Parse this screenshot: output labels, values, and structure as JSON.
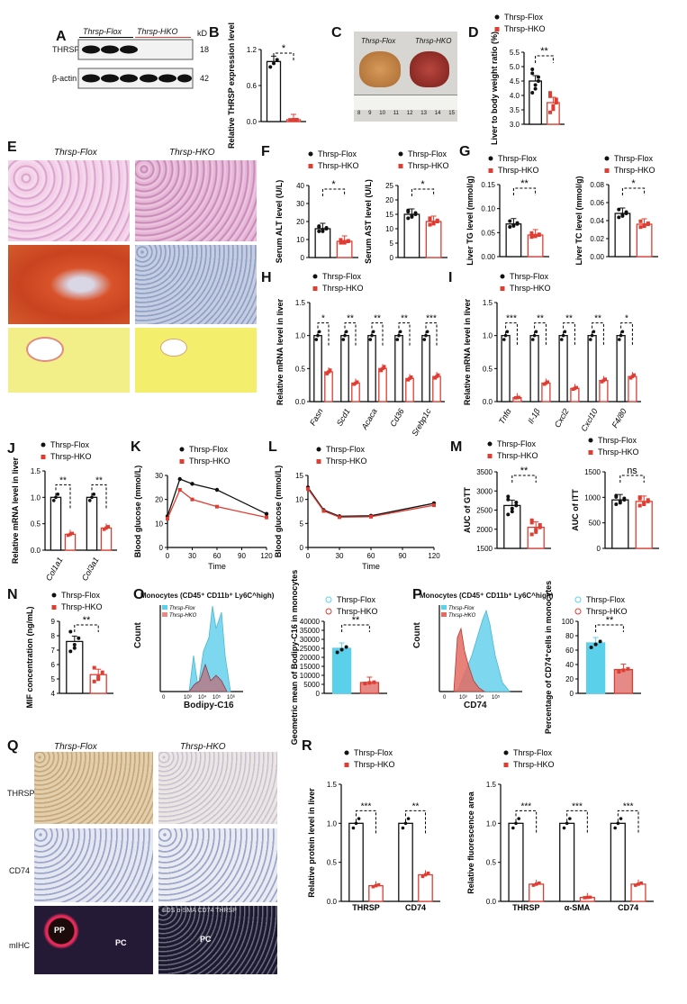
{
  "panels": [
    "A",
    "B",
    "C",
    "D",
    "E",
    "F",
    "G",
    "H",
    "I",
    "J",
    "K",
    "L",
    "M",
    "N",
    "O",
    "P",
    "Q",
    "R"
  ],
  "groups": {
    "flox_prefix": "Thrsp",
    "flox_suffix": "-Flox",
    "hko_prefix": "Thrsp",
    "hko_suffix": "-HKO"
  },
  "colors": {
    "flox": "#111111",
    "hko": "#e03c31",
    "hko_fill": "#e8827a",
    "cyan": "#5bd0ea",
    "pink": "#e58a86"
  },
  "panel_a": {
    "header_flox": "Thrsp-Flox",
    "header_hko": "Thrsp-HKO",
    "kd": "kD",
    "rows": [
      {
        "label": "THRSP",
        "kd": "18"
      },
      {
        "label": "β-actin",
        "kd": "42"
      }
    ]
  },
  "panel_c": {
    "left": "Thrsp-Flox",
    "right": "Thrsp-HKO",
    "ruler": [
      "8",
      "9",
      "10",
      "11",
      "12",
      "13",
      "14",
      "15"
    ]
  },
  "panel_e": {
    "left": "Thrsp-Flox",
    "right": "Thrsp-HKO"
  },
  "panel_o": {
    "title": "Monocytes (CD45⁺ CD11b⁺ Ly6C^high)",
    "xaxis": "Bodipy-C16",
    "yaxis": "Count",
    "ticks": [
      "0",
      "10³",
      "10⁴",
      "10⁵",
      "10⁶"
    ],
    "legend": [
      "Thrsp-Flox",
      "Thrsp-HKO"
    ]
  },
  "panel_p": {
    "title": "Monocytes (CD45⁺ CD11b⁺ Ly6C^high)",
    "xaxis": "CD74",
    "yaxis": "Count",
    "ticks": [
      "0",
      "10³",
      "10⁴",
      "10⁵"
    ],
    "legend": [
      "Thrsp-Flox",
      "Thrsp-HKO"
    ]
  },
  "panel_q": {
    "col_left": "Thrsp-Flox",
    "col_right": "Thrsp-HKO",
    "rows": [
      "THRSP",
      "CD74",
      "mIHC"
    ],
    "pp": "PP",
    "pc": "PC",
    "mihc_legend": "SDS α-SMA CD74 THRSP"
  },
  "chart_data": [
    {
      "id": "B",
      "type": "bar",
      "ylabel": "Relative THRSP expression level",
      "ylim": [
        0,
        1.2
      ],
      "yticks": [
        "0.0",
        "0.6",
        "1.2"
      ],
      "categories": [
        "Thrsp-Flox",
        "Thrsp-HKO"
      ],
      "values": [
        1.0,
        0.03
      ],
      "sig": [
        "*"
      ]
    },
    {
      "id": "D",
      "type": "bar",
      "ylabel": "Liver to body weight ratio (%)",
      "ylim": [
        3.0,
        5.5
      ],
      "yticks": [
        "3.0",
        "3.5",
        "4.0",
        "4.5",
        "5.0",
        "5.5"
      ],
      "categories": [
        "Thrsp-Flox",
        "Thrsp-HKO"
      ],
      "values": [
        4.5,
        3.75
      ],
      "sig": [
        "**"
      ]
    },
    {
      "id": "F1",
      "type": "bar",
      "ylabel": "Serum ALT level (U/L)",
      "ylim": [
        0,
        40
      ],
      "yticks": [
        "0",
        "10",
        "20",
        "30",
        "40"
      ],
      "categories": [
        "Thrsp-Flox",
        "Thrsp-HKO"
      ],
      "values": [
        16,
        9
      ],
      "sig": [
        "*"
      ]
    },
    {
      "id": "F2",
      "type": "bar",
      "ylabel": "Serum AST level (U/L)",
      "ylim": [
        0,
        25
      ],
      "yticks": [
        "0",
        "5",
        "10",
        "15",
        "20",
        "25"
      ],
      "categories": [
        "Thrsp-Flox",
        "Thrsp-HKO"
      ],
      "values": [
        15,
        12.5
      ],
      "sig": [
        "*"
      ]
    },
    {
      "id": "G1",
      "type": "bar",
      "ylabel": "Liver TG level (mmol/g)",
      "ylim": [
        0,
        0.15
      ],
      "yticks": [
        "0.00",
        "0.05",
        "0.10",
        "0.15"
      ],
      "categories": [
        "Thrsp-Flox",
        "Thrsp-HKO"
      ],
      "values": [
        0.068,
        0.045
      ],
      "sig": [
        "**"
      ]
    },
    {
      "id": "G2",
      "type": "bar",
      "ylabel": "Liver TC level (mmol/g)",
      "ylim": [
        0,
        0.08
      ],
      "yticks": [
        "0.00",
        "0.02",
        "0.04",
        "0.06",
        "0.08"
      ],
      "categories": [
        "Thrsp-Flox",
        "Thrsp-HKO"
      ],
      "values": [
        0.048,
        0.036
      ],
      "sig": [
        "*"
      ]
    },
    {
      "id": "H",
      "type": "bar",
      "ylabel": "Relative mRNA level in liver",
      "ylim": [
        0,
        1.5
      ],
      "yticks": [
        "0.0",
        "0.5",
        "1.0",
        "1.5"
      ],
      "categories": [
        "Fasn",
        "Scd1",
        "Acaca",
        "Cd36",
        "Srebp1c"
      ],
      "series": [
        {
          "name": "Thrsp-Flox",
          "values": [
            1.0,
            1.0,
            1.0,
            1.0,
            1.0
          ]
        },
        {
          "name": "Thrsp-HKO",
          "values": [
            0.45,
            0.28,
            0.5,
            0.35,
            0.38
          ]
        }
      ],
      "sig": [
        "*",
        "**",
        "**",
        "**",
        "***"
      ]
    },
    {
      "id": "I",
      "type": "bar",
      "ylabel": "Relative mRNA level in liver",
      "ylim": [
        0,
        1.5
      ],
      "yticks": [
        "0.0",
        "0.5",
        "1.0",
        "1.5"
      ],
      "categories": [
        "Tnfα",
        "Il-1β",
        "Cxcl2",
        "Cxcl10",
        "F4/80"
      ],
      "series": [
        {
          "name": "Thrsp-Flox",
          "values": [
            1.0,
            1.0,
            1.0,
            1.0,
            1.0
          ]
        },
        {
          "name": "Thrsp-HKO",
          "values": [
            0.06,
            0.28,
            0.2,
            0.32,
            0.38
          ]
        }
      ],
      "sig": [
        "***",
        "**",
        "**",
        "**",
        "*"
      ]
    },
    {
      "id": "J",
      "type": "bar",
      "ylabel": "Relative mRNA level in liver",
      "ylim": [
        0,
        1.5
      ],
      "yticks": [
        "0.0",
        "0.5",
        "1.0",
        "1.5"
      ],
      "categories": [
        "Col1a1",
        "Col3a1"
      ],
      "series": [
        {
          "name": "Thrsp-Flox",
          "values": [
            1.0,
            1.0
          ]
        },
        {
          "name": "Thrsp-HKO",
          "values": [
            0.3,
            0.42
          ]
        }
      ],
      "sig": [
        "**",
        "**"
      ]
    },
    {
      "id": "K",
      "type": "line",
      "ylabel": "Blood glucose (mmol/L)",
      "xlabel": "Time",
      "ylim": [
        0,
        30
      ],
      "yticks": [
        "0",
        "10",
        "20",
        "30"
      ],
      "xticks": [
        "0",
        "30",
        "60",
        "90",
        "120"
      ],
      "x": [
        0,
        15,
        30,
        60,
        120
      ],
      "series": [
        {
          "name": "Thrsp-Flox",
          "values": [
            13,
            28.5,
            26.5,
            24,
            14
          ]
        },
        {
          "name": "Thrsp-HKO",
          "values": [
            12,
            24,
            20,
            17,
            12.5
          ]
        }
      ]
    },
    {
      "id": "L",
      "type": "line",
      "ylabel": "Blood glucose (mmol/L)",
      "xlabel": "Time",
      "ylim": [
        0,
        15
      ],
      "yticks": [
        "0",
        "5",
        "10",
        "15"
      ],
      "xticks": [
        "0",
        "30",
        "60",
        "90",
        "120"
      ],
      "x": [
        0,
        15,
        30,
        60,
        120
      ],
      "series": [
        {
          "name": "Thrsp-Flox",
          "values": [
            12.5,
            7.8,
            6.5,
            6.6,
            9.2
          ]
        },
        {
          "name": "Thrsp-HKO",
          "values": [
            12.2,
            7.6,
            6.3,
            6.4,
            8.8
          ]
        }
      ]
    },
    {
      "id": "M1",
      "type": "bar",
      "ylabel": "AUC of GTT",
      "ylim": [
        1500,
        3500
      ],
      "yticks": [
        "1500",
        "2000",
        "2500",
        "3000",
        "3500"
      ],
      "categories": [
        "Thrsp-Flox",
        "Thrsp-HKO"
      ],
      "values": [
        2620,
        2050
      ],
      "sig": [
        "**"
      ]
    },
    {
      "id": "M2",
      "type": "bar",
      "ylabel": "AUC of ITT",
      "ylim": [
        0,
        1500
      ],
      "yticks": [
        "0",
        "500",
        "1000",
        "1500"
      ],
      "categories": [
        "Thrsp-Flox",
        "Thrsp-HKO"
      ],
      "values": [
        950,
        920
      ],
      "sig": [
        "ns"
      ]
    },
    {
      "id": "N",
      "type": "bar",
      "ylabel": "MIF concentration (ng/mL)",
      "ylim": [
        4,
        9
      ],
      "yticks": [
        "4",
        "5",
        "6",
        "7",
        "8",
        "9"
      ],
      "categories": [
        "Thrsp-Flox",
        "Thrsp-HKO"
      ],
      "values": [
        7.6,
        5.3
      ],
      "sig": [
        "**"
      ]
    },
    {
      "id": "O2",
      "type": "bar",
      "ylabel": "Geometric mean of Bodipy-C16 in monocytes",
      "ylim": [
        0,
        40000
      ],
      "yticks": [
        "0",
        "5000",
        "10000",
        "15000",
        "20000",
        "25000",
        "30000",
        "35000",
        "40000"
      ],
      "categories": [
        "Thrsp-Flox",
        "Thrsp-HKO"
      ],
      "values": [
        25000,
        6000
      ],
      "sig": [
        "**"
      ]
    },
    {
      "id": "P2",
      "type": "bar",
      "ylabel": "Percentage of CD74⁺cells in monocytes",
      "ylim": [
        0,
        100
      ],
      "yticks": [
        "0",
        "20",
        "40",
        "60",
        "80",
        "100"
      ],
      "categories": [
        "Thrsp-Flox",
        "Thrsp-HKO"
      ],
      "values": [
        70,
        33
      ],
      "sig": [
        "**"
      ]
    },
    {
      "id": "R1",
      "type": "bar",
      "ylabel": "Relative protein level in liver",
      "ylim": [
        0,
        1.5
      ],
      "yticks": [
        "0.0",
        "0.5",
        "1.0",
        "1.5"
      ],
      "categories": [
        "THRSP",
        "CD74"
      ],
      "series": [
        {
          "name": "Thrsp-Flox",
          "values": [
            1.0,
            1.0
          ]
        },
        {
          "name": "Thrsp-HKO",
          "values": [
            0.2,
            0.34
          ]
        }
      ],
      "sig": [
        "***",
        "**"
      ]
    },
    {
      "id": "R2",
      "type": "bar",
      "ylabel": "Relative fluorescence area",
      "ylim": [
        0,
        1.5
      ],
      "yticks": [
        "0.0",
        "0.5",
        "1.0",
        "1.5"
      ],
      "categories": [
        "THRSP",
        "α-SMA",
        "CD74"
      ],
      "series": [
        {
          "name": "Thrsp-Flox",
          "values": [
            1.0,
            1.0,
            1.0
          ]
        },
        {
          "name": "Thrsp-HKO",
          "values": [
            0.22,
            0.05,
            0.22
          ]
        }
      ],
      "sig": [
        "***",
        "***",
        "***"
      ]
    }
  ]
}
